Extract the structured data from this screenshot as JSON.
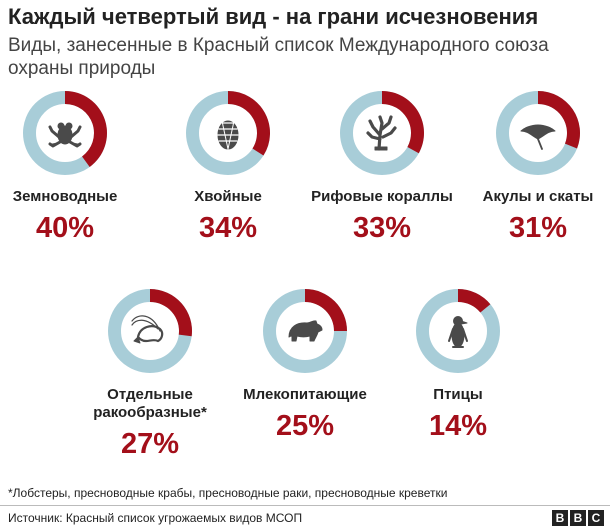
{
  "header": {
    "title": "Каждый четвертый вид - на грани исчезновения",
    "subtitle": "Виды, занесенные в Красный список Международного союза охраны природы"
  },
  "colors": {
    "threatened": "#a30f1a",
    "rest": "#a8cdd8",
    "icon": "#4a4a4a"
  },
  "chart_data": {
    "type": "pie",
    "series": [
      {
        "label": "Земноводные",
        "value": 40,
        "display": "40%",
        "icon": "frog-icon"
      },
      {
        "label": "Хвойные",
        "value": 34,
        "display": "34%",
        "icon": "pinecone-icon"
      },
      {
        "label": "Рифовые кораллы",
        "value": 33,
        "display": "33%",
        "icon": "coral-icon"
      },
      {
        "label": "Акулы и скаты",
        "value": 31,
        "display": "31%",
        "icon": "ray-icon"
      },
      {
        "label": "Отдельные ракообразные*",
        "value": 27,
        "display": "27%",
        "icon": "shrimp-icon"
      },
      {
        "label": "Млекопитающие",
        "value": 25,
        "display": "25%",
        "icon": "bear-icon"
      },
      {
        "label": "Птицы",
        "value": 14,
        "display": "14%",
        "icon": "penguin-icon"
      }
    ]
  },
  "footer": {
    "footnote": "*Лобстеры, пресноводные крабы, пресноводные раки, пресноводные креветки",
    "source": "Источник: Красный список угрожаемых видов МСОП",
    "logo_letters": [
      "B",
      "B",
      "C"
    ]
  }
}
